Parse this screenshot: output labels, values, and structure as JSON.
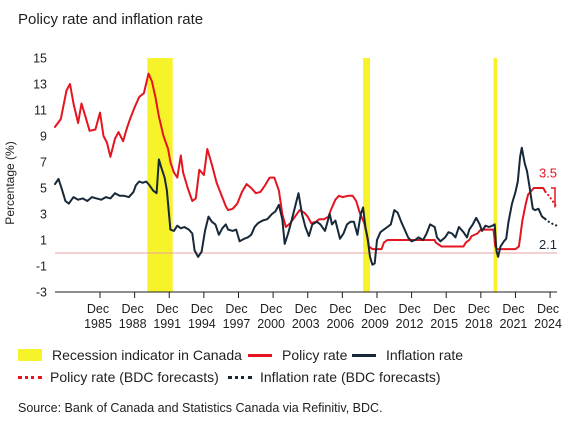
{
  "chart_data": {
    "type": "line",
    "title": "Policy rate and inflation rate",
    "ylabel": "Percentage (%)",
    "ylim": [
      -3,
      15
    ],
    "yticks": [
      15,
      13,
      11,
      9,
      7,
      5,
      3,
      1,
      -1,
      -3
    ],
    "ytick_labels": [
      "15",
      "13",
      "11",
      "9",
      "7",
      "5",
      "3",
      "1",
      "-1",
      "-3"
    ],
    "xlim": [
      1982.0,
      2025.5
    ],
    "xticks": [
      {
        "x": 1985.9,
        "top": "Dec",
        "bottom": "1985"
      },
      {
        "x": 1988.9,
        "top": "Dec",
        "bottom": "1988"
      },
      {
        "x": 1991.9,
        "top": "Dec",
        "bottom": "1991"
      },
      {
        "x": 1994.9,
        "top": "Dec",
        "bottom": "1994"
      },
      {
        "x": 1997.9,
        "top": "Dec",
        "bottom": "1997"
      },
      {
        "x": 2000.9,
        "top": "Dec",
        "bottom": "2000"
      },
      {
        "x": 2003.9,
        "top": "Dec",
        "bottom": "2003"
      },
      {
        "x": 2006.9,
        "top": "Dec",
        "bottom": "2006"
      },
      {
        "x": 2009.9,
        "top": "Dec",
        "bottom": "2009"
      },
      {
        "x": 2012.9,
        "top": "Dec",
        "bottom": "2012"
      },
      {
        "x": 2015.9,
        "top": "Dec",
        "bottom": "2015"
      },
      {
        "x": 2018.9,
        "top": "Dec",
        "bottom": "2018"
      },
      {
        "x": 2021.9,
        "top": "Dec",
        "bottom": "2021"
      },
      {
        "x": 2024.9,
        "top": "Dec",
        "bottom": "2024"
      }
    ],
    "zero_line": 0,
    "recessions": [
      [
        1990.0,
        1992.2
      ],
      [
        2008.7,
        2009.3
      ],
      [
        2020.0,
        2020.3
      ]
    ],
    "series": [
      {
        "name": "Policy rate",
        "color": "#e4151f",
        "style": "solid",
        "points": [
          [
            1982.0,
            9.7
          ],
          [
            1982.5,
            10.3
          ],
          [
            1983.0,
            12.5
          ],
          [
            1983.3,
            13.0
          ],
          [
            1983.6,
            11.5
          ],
          [
            1984.0,
            10.0
          ],
          [
            1984.3,
            11.5
          ],
          [
            1984.6,
            10.6
          ],
          [
            1985.0,
            9.4
          ],
          [
            1985.5,
            9.5
          ],
          [
            1985.9,
            10.8
          ],
          [
            1986.2,
            9.0
          ],
          [
            1986.5,
            8.5
          ],
          [
            1986.8,
            7.4
          ],
          [
            1987.2,
            8.8
          ],
          [
            1987.5,
            9.3
          ],
          [
            1987.9,
            8.6
          ],
          [
            1988.2,
            9.5
          ],
          [
            1988.5,
            10.3
          ],
          [
            1988.9,
            11.2
          ],
          [
            1989.3,
            12.0
          ],
          [
            1989.7,
            12.3
          ],
          [
            1990.1,
            13.8
          ],
          [
            1990.4,
            13.2
          ],
          [
            1990.7,
            12.0
          ],
          [
            1991.0,
            10.5
          ],
          [
            1991.4,
            9.0
          ],
          [
            1991.8,
            8.0
          ],
          [
            1992.0,
            7.0
          ],
          [
            1992.3,
            6.2
          ],
          [
            1992.6,
            5.8
          ],
          [
            1992.9,
            7.5
          ],
          [
            1993.1,
            6.2
          ],
          [
            1993.5,
            5.0
          ],
          [
            1993.9,
            4.0
          ],
          [
            1994.2,
            4.2
          ],
          [
            1994.5,
            6.4
          ],
          [
            1994.9,
            6.0
          ],
          [
            1995.2,
            8.0
          ],
          [
            1995.6,
            6.8
          ],
          [
            1996.0,
            5.4
          ],
          [
            1996.4,
            4.5
          ],
          [
            1996.8,
            3.6
          ],
          [
            1997.0,
            3.3
          ],
          [
            1997.4,
            3.4
          ],
          [
            1997.8,
            3.8
          ],
          [
            1998.2,
            4.7
          ],
          [
            1998.6,
            5.3
          ],
          [
            1999.0,
            5.0
          ],
          [
            1999.4,
            4.6
          ],
          [
            1999.8,
            4.7
          ],
          [
            2000.2,
            5.2
          ],
          [
            2000.6,
            5.8
          ],
          [
            2001.0,
            5.8
          ],
          [
            2001.4,
            4.8
          ],
          [
            2001.7,
            3.0
          ],
          [
            2002.0,
            2.0
          ],
          [
            2002.4,
            2.3
          ],
          [
            2002.8,
            2.8
          ],
          [
            2003.2,
            3.3
          ],
          [
            2003.6,
            3.1
          ],
          [
            2003.9,
            2.8
          ],
          [
            2004.2,
            2.3
          ],
          [
            2004.6,
            2.4
          ],
          [
            2004.9,
            2.6
          ],
          [
            2005.3,
            2.6
          ],
          [
            2005.7,
            2.8
          ],
          [
            2005.9,
            3.3
          ],
          [
            2006.3,
            4.1
          ],
          [
            2006.6,
            4.4
          ],
          [
            2006.9,
            4.3
          ],
          [
            2007.4,
            4.4
          ],
          [
            2007.8,
            4.4
          ],
          [
            2008.1,
            4.0
          ],
          [
            2008.4,
            3.1
          ],
          [
            2008.8,
            2.3
          ],
          [
            2009.0,
            1.5
          ],
          [
            2009.2,
            0.5
          ],
          [
            2009.5,
            0.3
          ],
          [
            2009.9,
            0.3
          ],
          [
            2010.3,
            0.3
          ],
          [
            2010.5,
            0.8
          ],
          [
            2010.8,
            1.0
          ],
          [
            2011.5,
            1.0
          ],
          [
            2012.5,
            1.0
          ],
          [
            2013.5,
            1.0
          ],
          [
            2014.5,
            1.0
          ],
          [
            2014.9,
            1.0
          ],
          [
            2015.0,
            0.8
          ],
          [
            2015.5,
            0.5
          ],
          [
            2016.5,
            0.5
          ],
          [
            2017.4,
            0.5
          ],
          [
            2017.6,
            0.8
          ],
          [
            2017.9,
            1.0
          ],
          [
            2018.1,
            1.3
          ],
          [
            2018.6,
            1.5
          ],
          [
            2018.9,
            1.8
          ],
          [
            2019.5,
            1.8
          ],
          [
            2020.0,
            1.8
          ],
          [
            2020.15,
            0.5
          ],
          [
            2020.3,
            0.3
          ],
          [
            2021.0,
            0.3
          ],
          [
            2021.9,
            0.3
          ],
          [
            2022.2,
            0.5
          ],
          [
            2022.5,
            2.5
          ],
          [
            2022.8,
            3.8
          ],
          [
            2023.0,
            4.5
          ],
          [
            2023.5,
            5.0
          ],
          [
            2024.0,
            5.0
          ],
          [
            2024.3,
            5.0
          ],
          [
            2024.5,
            4.7
          ]
        ]
      },
      {
        "name": "Inflation rate",
        "color": "#172838",
        "style": "solid",
        "points": [
          [
            1982.0,
            5.3
          ],
          [
            1982.3,
            5.7
          ],
          [
            1982.6,
            4.9
          ],
          [
            1982.9,
            4.0
          ],
          [
            1983.2,
            3.8
          ],
          [
            1983.6,
            4.3
          ],
          [
            1984.0,
            4.1
          ],
          [
            1984.4,
            4.2
          ],
          [
            1984.8,
            4.0
          ],
          [
            1985.2,
            4.3
          ],
          [
            1985.6,
            4.2
          ],
          [
            1986.0,
            4.1
          ],
          [
            1986.4,
            4.3
          ],
          [
            1986.8,
            4.2
          ],
          [
            1987.2,
            4.6
          ],
          [
            1987.6,
            4.4
          ],
          [
            1988.0,
            4.4
          ],
          [
            1988.4,
            4.3
          ],
          [
            1988.8,
            4.7
          ],
          [
            1989.0,
            5.2
          ],
          [
            1989.3,
            5.5
          ],
          [
            1989.6,
            5.4
          ],
          [
            1989.9,
            5.5
          ],
          [
            1990.2,
            5.2
          ],
          [
            1990.5,
            4.8
          ],
          [
            1990.8,
            4.6
          ],
          [
            1991.0,
            7.2
          ],
          [
            1991.2,
            6.6
          ],
          [
            1991.5,
            5.8
          ],
          [
            1991.7,
            4.8
          ],
          [
            1992.0,
            1.8
          ],
          [
            1992.3,
            1.7
          ],
          [
            1992.6,
            2.1
          ],
          [
            1992.9,
            1.9
          ],
          [
            1993.2,
            2.0
          ],
          [
            1993.6,
            1.8
          ],
          [
            1993.9,
            1.5
          ],
          [
            1994.1,
            0.2
          ],
          [
            1994.4,
            -0.3
          ],
          [
            1994.7,
            0.1
          ],
          [
            1995.0,
            1.7
          ],
          [
            1995.3,
            2.8
          ],
          [
            1995.6,
            2.4
          ],
          [
            1995.9,
            2.2
          ],
          [
            1996.2,
            1.4
          ],
          [
            1996.5,
            1.9
          ],
          [
            1996.8,
            2.2
          ],
          [
            1997.0,
            1.8
          ],
          [
            1997.4,
            1.7
          ],
          [
            1997.7,
            1.8
          ],
          [
            1998.0,
            0.9
          ],
          [
            1998.4,
            1.1
          ],
          [
            1998.7,
            1.2
          ],
          [
            1999.0,
            1.4
          ],
          [
            1999.3,
            2.0
          ],
          [
            1999.6,
            2.3
          ],
          [
            2000.0,
            2.5
          ],
          [
            2000.4,
            2.6
          ],
          [
            2000.8,
            3.0
          ],
          [
            2001.1,
            3.2
          ],
          [
            2001.4,
            3.7
          ],
          [
            2001.7,
            2.6
          ],
          [
            2001.9,
            0.7
          ],
          [
            2002.2,
            1.5
          ],
          [
            2002.5,
            2.5
          ],
          [
            2002.9,
            3.9
          ],
          [
            2003.1,
            4.6
          ],
          [
            2003.4,
            3.0
          ],
          [
            2003.7,
            2.0
          ],
          [
            2004.0,
            1.3
          ],
          [
            2004.3,
            2.2
          ],
          [
            2004.7,
            2.4
          ],
          [
            2005.0,
            2.2
          ],
          [
            2005.4,
            1.7
          ],
          [
            2005.8,
            3.0
          ],
          [
            2006.0,
            2.2
          ],
          [
            2006.3,
            2.5
          ],
          [
            2006.7,
            1.1
          ],
          [
            2007.0,
            1.5
          ],
          [
            2007.3,
            2.2
          ],
          [
            2007.6,
            2.4
          ],
          [
            2007.9,
            2.4
          ],
          [
            2008.2,
            1.4
          ],
          [
            2008.5,
            3.0
          ],
          [
            2008.7,
            3.5
          ],
          [
            2008.9,
            2.0
          ],
          [
            2009.1,
            1.1
          ],
          [
            2009.3,
            -0.3
          ],
          [
            2009.5,
            -0.9
          ],
          [
            2009.7,
            -0.8
          ],
          [
            2009.9,
            1.0
          ],
          [
            2010.2,
            1.6
          ],
          [
            2010.5,
            1.8
          ],
          [
            2010.8,
            2.0
          ],
          [
            2011.1,
            2.2
          ],
          [
            2011.4,
            3.3
          ],
          [
            2011.7,
            3.1
          ],
          [
            2012.0,
            2.4
          ],
          [
            2012.3,
            1.8
          ],
          [
            2012.6,
            1.2
          ],
          [
            2012.9,
            0.9
          ],
          [
            2013.2,
            1.0
          ],
          [
            2013.5,
            1.2
          ],
          [
            2013.9,
            1.0
          ],
          [
            2014.2,
            1.5
          ],
          [
            2014.5,
            2.2
          ],
          [
            2014.9,
            2.0
          ],
          [
            2015.1,
            1.2
          ],
          [
            2015.4,
            0.9
          ],
          [
            2015.8,
            1.2
          ],
          [
            2016.1,
            1.6
          ],
          [
            2016.4,
            1.5
          ],
          [
            2016.7,
            1.2
          ],
          [
            2017.0,
            2.0
          ],
          [
            2017.4,
            1.6
          ],
          [
            2017.7,
            1.2
          ],
          [
            2017.9,
            1.8
          ],
          [
            2018.2,
            2.2
          ],
          [
            2018.5,
            2.7
          ],
          [
            2018.8,
            2.2
          ],
          [
            2019.0,
            1.7
          ],
          [
            2019.3,
            2.1
          ],
          [
            2019.6,
            2.0
          ],
          [
            2019.9,
            2.1
          ],
          [
            2020.1,
            2.2
          ],
          [
            2020.25,
            0.2
          ],
          [
            2020.4,
            -0.3
          ],
          [
            2020.6,
            0.5
          ],
          [
            2020.9,
            0.9
          ],
          [
            2021.1,
            1.1
          ],
          [
            2021.3,
            2.4
          ],
          [
            2021.6,
            3.8
          ],
          [
            2021.9,
            4.7
          ],
          [
            2022.1,
            5.5
          ],
          [
            2022.3,
            7.4
          ],
          [
            2022.45,
            8.1
          ],
          [
            2022.7,
            6.9
          ],
          [
            2022.9,
            6.3
          ],
          [
            2023.1,
            5.2
          ],
          [
            2023.4,
            3.4
          ],
          [
            2023.6,
            3.3
          ],
          [
            2023.9,
            3.4
          ],
          [
            2024.2,
            2.8
          ],
          [
            2024.5,
            2.6
          ]
        ]
      },
      {
        "name": "Policy rate (BDC forecasts)",
        "color": "#e4151f",
        "style": "dotted",
        "points": [
          [
            2024.5,
            4.7
          ],
          [
            2024.8,
            4.4
          ],
          [
            2025.2,
            3.9
          ],
          [
            2025.5,
            3.5
          ]
        ]
      },
      {
        "name": "Inflation rate (BDC forecasts)",
        "color": "#172838",
        "style": "dotted",
        "points": [
          [
            2024.5,
            2.6
          ],
          [
            2024.8,
            2.4
          ],
          [
            2025.2,
            2.2
          ],
          [
            2025.5,
            2.1
          ]
        ]
      }
    ],
    "annotations": [
      {
        "text": "3.5",
        "x": 2025.3,
        "y": 6.2,
        "color": "#e4151f"
      },
      {
        "text": "2.1",
        "x": 2025.3,
        "y": 0.7,
        "color": "#172838"
      }
    ],
    "annotation_bracket": {
      "y_top": 5.0,
      "y_bottom": 3.5,
      "color": "#e4151f"
    }
  },
  "legend": {
    "recession": "Recession indicator in Canada",
    "policy": "Policy rate",
    "inflation": "Inflation rate",
    "policy_forecast": "Policy rate (BDC forecasts)",
    "inflation_forecast": "Inflation rate (BDC forecasts)"
  },
  "colors": {
    "recession": "#f7f32a",
    "policy": "#e4151f",
    "inflation": "#172838",
    "zero_line": "#e8a0a0"
  },
  "source": "Source: Bank of Canada and Statistics Canada via Refinitiv, BDC."
}
